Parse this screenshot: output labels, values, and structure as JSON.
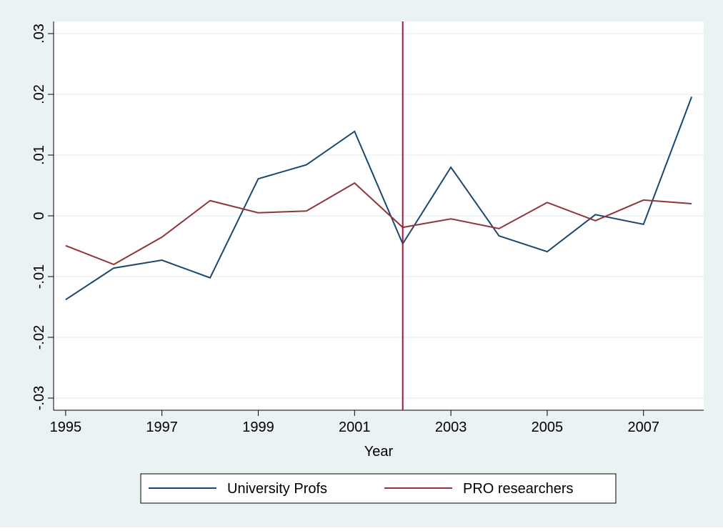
{
  "chart_data": {
    "type": "line",
    "x_label": "Year",
    "x": [
      1995,
      1996,
      1997,
      1998,
      1999,
      2000,
      2001,
      2002,
      2003,
      2004,
      2005,
      2006,
      2007,
      2008
    ],
    "series": [
      {
        "name": "University Profs",
        "color": "#1a476f",
        "values": [
          -0.0138,
          -0.0086,
          -0.0073,
          -0.0102,
          0.0061,
          0.0084,
          0.0139,
          -0.0046,
          0.008,
          -0.0033,
          -0.0059,
          0.0002,
          -0.0014,
          0.0196
        ]
      },
      {
        "name": "PRO researchers",
        "color": "#90353b",
        "values": [
          -0.0049,
          -0.008,
          -0.0035,
          0.0025,
          0.0005,
          0.0008,
          0.0054,
          -0.0019,
          -0.0005,
          -0.0021,
          0.0022,
          -0.0008,
          0.0026,
          0.002
        ]
      }
    ],
    "xline": 2002,
    "xline_color": "#9b1b3a",
    "xlim": [
      1994.75,
      2008.25
    ],
    "xticks": [
      1995,
      1997,
      1999,
      2001,
      2003,
      2005,
      2007
    ],
    "ylim": [
      -0.032,
      0.032
    ],
    "yticks": [
      {
        "value": -0.03,
        "label": "-.03"
      },
      {
        "value": -0.02,
        "label": "-.02"
      },
      {
        "value": -0.01,
        "label": "-.01"
      },
      0,
      {
        "value": 0.01,
        "label": ".01"
      },
      {
        "value": 0.02,
        "label": ".02"
      },
      {
        "value": 0.03,
        "label": ".03"
      }
    ],
    "grid": true,
    "legend": "bottom"
  }
}
